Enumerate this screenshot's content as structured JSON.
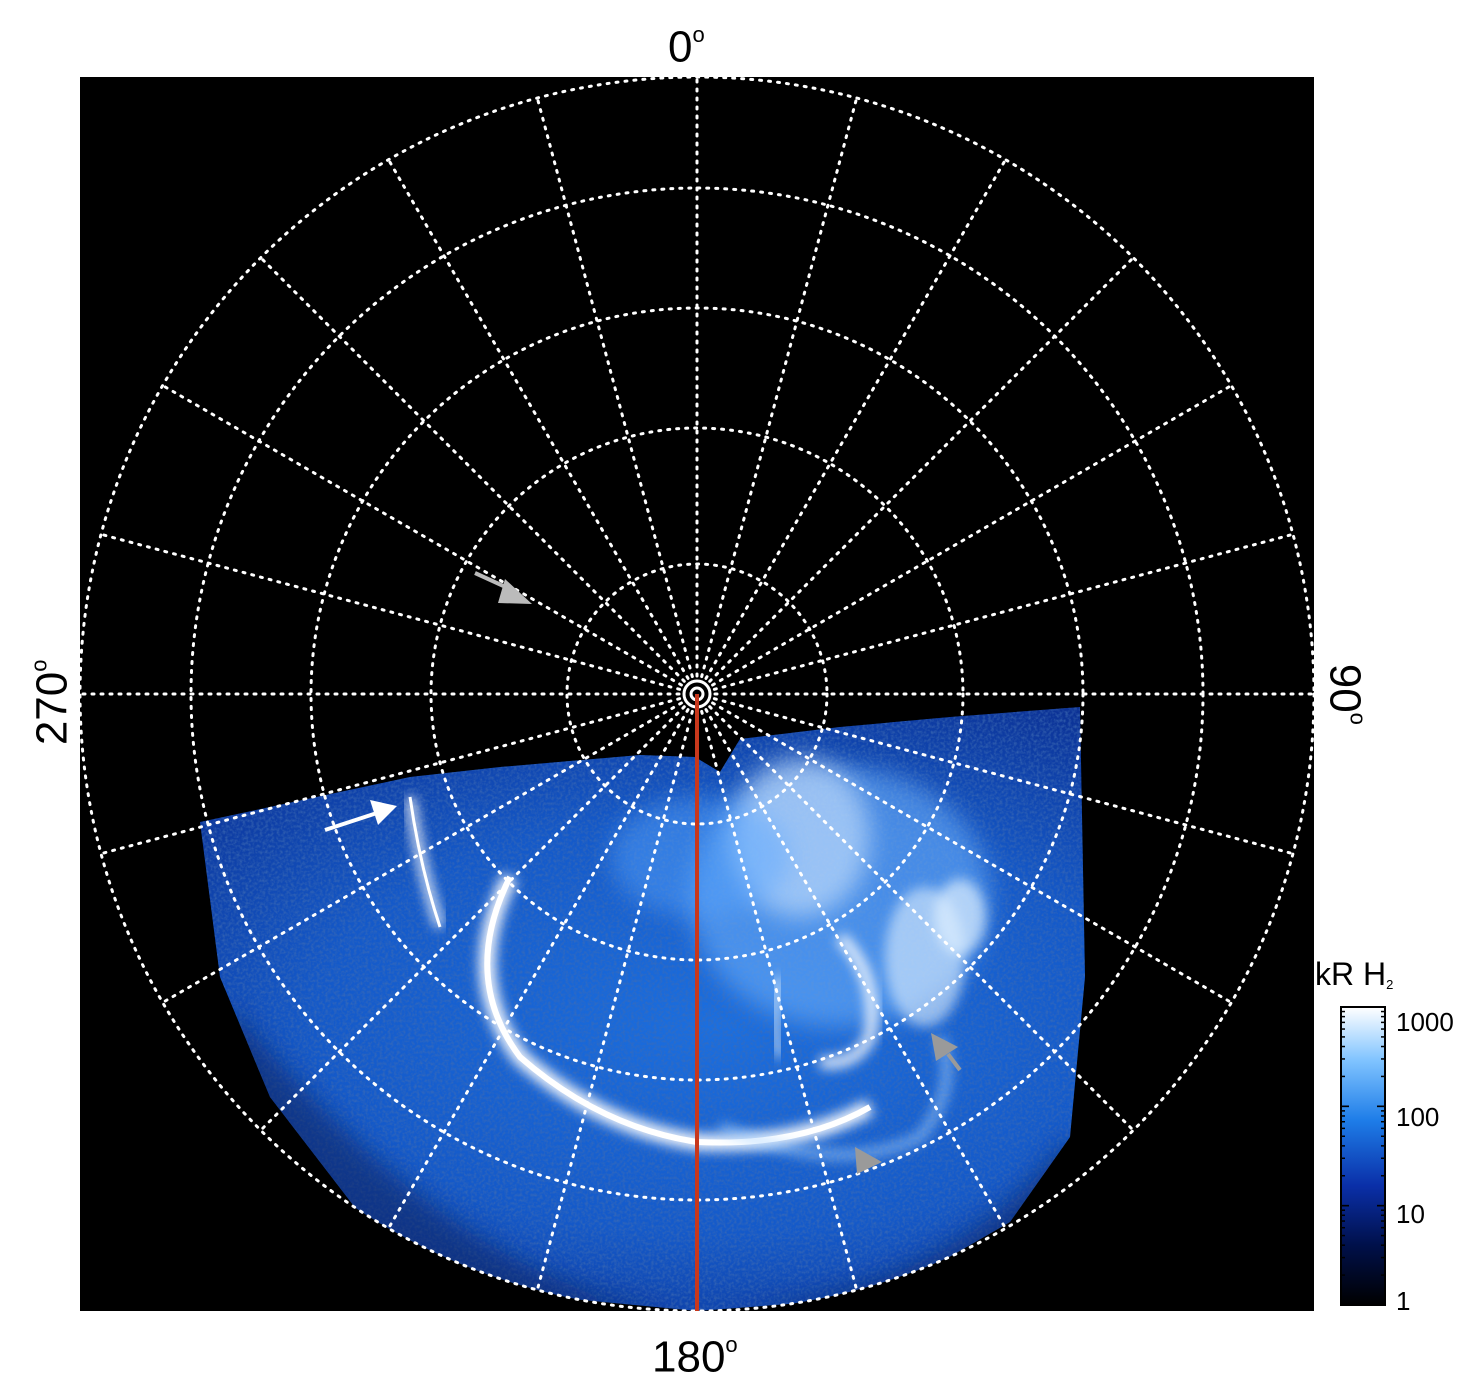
{
  "labels": {
    "top": "0",
    "right": "90",
    "bottom": "180",
    "left": "270",
    "degree_mark": "o"
  },
  "colorbar": {
    "unit": "kR H",
    "unit_sub": "2",
    "ticks": [
      "1000",
      "100",
      "10",
      "1"
    ],
    "scale": "log",
    "range": [
      1,
      1000
    ],
    "colors": [
      "#000000",
      "#00104a",
      "#0a2fa8",
      "#1e7de8",
      "#7fc3ff",
      "#ffffff"
    ]
  },
  "image": {
    "background": "#000000",
    "grid_color": "#ffffff",
    "meridian_color": "#c8381c",
    "aurora_colors": [
      "#0b2d8f",
      "#1b6fe0",
      "#5fb5ff",
      "#ffffff"
    ],
    "arrow_colors": [
      "#ffffff",
      "#bbbbbb",
      "#999999"
    ]
  }
}
